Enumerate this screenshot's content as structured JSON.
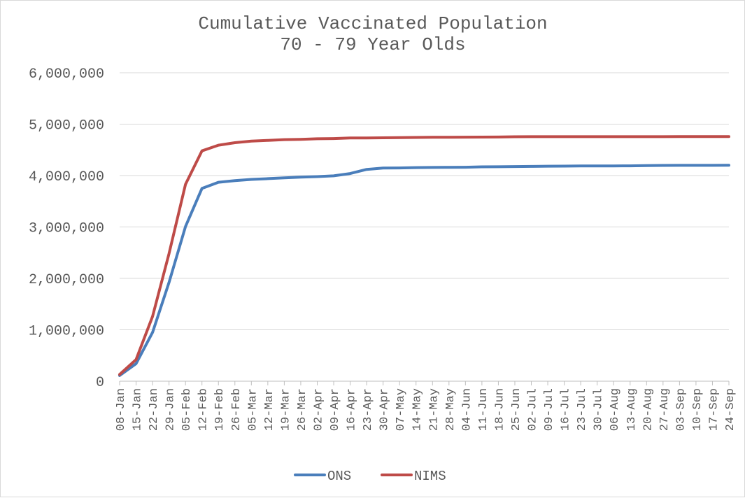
{
  "chart_data": {
    "type": "line",
    "title": "Cumulative Vaccinated Population",
    "subtitle": "70 - 79 Year Olds",
    "xlabel": "",
    "ylabel": "",
    "ylim": [
      0,
      6000000
    ],
    "yticks": [
      0,
      1000000,
      2000000,
      3000000,
      4000000,
      5000000,
      6000000
    ],
    "ytick_labels": [
      "0",
      "1,000,000",
      "2,000,000",
      "3,000,000",
      "4,000,000",
      "5,000,000",
      "6,000,000"
    ],
    "grid": true,
    "legend_position": "bottom",
    "categories": [
      "08-Jan",
      "15-Jan",
      "22-Jan",
      "29-Jan",
      "05-Feb",
      "12-Feb",
      "19-Feb",
      "26-Feb",
      "05-Mar",
      "12-Mar",
      "19-Mar",
      "26-Mar",
      "02-Apr",
      "09-Apr",
      "16-Apr",
      "23-Apr",
      "30-Apr",
      "07-May",
      "14-May",
      "21-May",
      "28-May",
      "04-Jun",
      "11-Jun",
      "18-Jun",
      "25-Jun",
      "02-Jul",
      "09-Jul",
      "16-Jul",
      "23-Jul",
      "30-Jul",
      "06-Aug",
      "13-Aug",
      "20-Aug",
      "27-Aug",
      "03-Sep",
      "10-Sep",
      "17-Sep",
      "24-Sep"
    ],
    "series": [
      {
        "name": "ONS",
        "color": "#4a7ebb",
        "values": [
          110000,
          340000,
          950000,
          1920000,
          3010000,
          3750000,
          3870000,
          3900000,
          3925000,
          3940000,
          3955000,
          3970000,
          3980000,
          3995000,
          4040000,
          4120000,
          4145000,
          4148000,
          4155000,
          4158000,
          4160000,
          4162000,
          4170000,
          4172000,
          4175000,
          4178000,
          4182000,
          4184000,
          4186000,
          4187000,
          4188000,
          4189000,
          4195000,
          4197000,
          4198000,
          4199000,
          4199000,
          4200000
        ]
      },
      {
        "name": "NIMS",
        "color": "#be4b48",
        "values": [
          130000,
          420000,
          1260000,
          2480000,
          3830000,
          4480000,
          4590000,
          4640000,
          4670000,
          4685000,
          4700000,
          4705000,
          4715000,
          4720000,
          4730000,
          4732000,
          4735000,
          4737000,
          4742000,
          4744000,
          4746000,
          4747000,
          4748000,
          4749000,
          4755000,
          4756000,
          4757000,
          4757000,
          4757000,
          4757000,
          4757000,
          4757000,
          4757000,
          4757000,
          4758000,
          4758000,
          4758000,
          4758000
        ]
      }
    ]
  }
}
